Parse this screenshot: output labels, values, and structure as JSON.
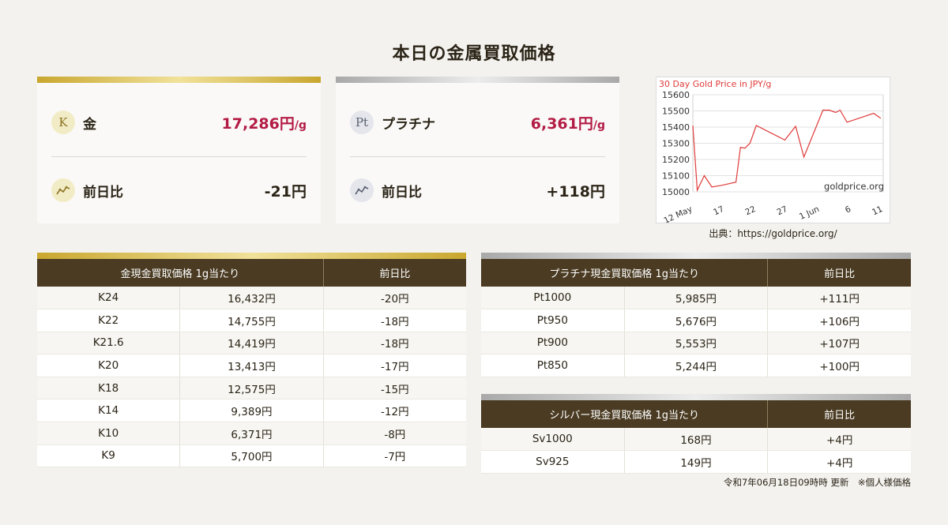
{
  "title": "本日の金属買取価格",
  "gold_card": {
    "badge": "K",
    "name": "金",
    "price": "17,286円",
    "unit": "/g",
    "change_label": "前日比",
    "change": "-21円",
    "change_icon": "trend-chart-icon"
  },
  "platinum_card": {
    "badge": "Pt",
    "name": "プラチナ",
    "price": "6,361円",
    "unit": "/g",
    "change_label": "前日比",
    "change": "+118円",
    "change_icon": "trend-chart-icon"
  },
  "chart_source": "出典：https://goldprice.org/",
  "chart_data": {
    "type": "line",
    "title": "30 Day Gold Price in JPY/g",
    "watermark": "goldprice.org",
    "x_tick_labels": [
      "12 May",
      "17",
      "22",
      "27",
      "1 Jun",
      "6",
      "11"
    ],
    "y_tick_labels": [
      "15000",
      "15100",
      "15200",
      "15300",
      "15400",
      "15500",
      "15600"
    ],
    "ylim": [
      15000,
      15600
    ],
    "xlim": [
      12,
      42
    ],
    "series": [
      {
        "x": [
          12,
          12.7,
          13.8,
          15,
          16.5,
          18.8,
          19.5,
          20.2,
          21,
          22,
          24.5,
          26.5,
          28.2,
          29.5,
          32.5,
          33.5,
          34.5,
          35.2,
          36.3,
          40.5,
          41.6
        ],
        "y": [
          15410,
          15010,
          15100,
          15030,
          15040,
          15060,
          15275,
          15270,
          15300,
          15410,
          15360,
          15320,
          15405,
          15215,
          15505,
          15505,
          15490,
          15505,
          15430,
          15485,
          15455
        ]
      }
    ],
    "color": "#e03a3a"
  },
  "gold_table": {
    "headers": [
      "金現金買取価格 1g当たり",
      "前日比"
    ],
    "rows": [
      [
        "K24",
        "16,432円",
        "-20円"
      ],
      [
        "K22",
        "14,755円",
        "-18円"
      ],
      [
        "K21.6",
        "14,419円",
        "-18円"
      ],
      [
        "K20",
        "13,413円",
        "-17円"
      ],
      [
        "K18",
        "12,575円",
        "-15円"
      ],
      [
        "K14",
        "9,389円",
        "-12円"
      ],
      [
        "K10",
        "6,371円",
        "-8円"
      ],
      [
        "K9",
        "5,700円",
        "-7円"
      ]
    ]
  },
  "platinum_table": {
    "headers": [
      "プラチナ現金買取価格 1g当たり",
      "前日比"
    ],
    "rows": [
      [
        "Pt1000",
        "5,985円",
        "+111円"
      ],
      [
        "Pt950",
        "5,676円",
        "+106円"
      ],
      [
        "Pt900",
        "5,553円",
        "+107円"
      ],
      [
        "Pt850",
        "5,244円",
        "+100円"
      ]
    ]
  },
  "silver_table": {
    "headers": [
      "シルバー現金買取価格 1g当たり",
      "前日比"
    ],
    "rows": [
      [
        "Sv1000",
        "168円",
        "+4円"
      ],
      [
        "Sv925",
        "149円",
        "+4円"
      ]
    ]
  },
  "updated_note": "令和7年06月18日09時時 更新　※個人様価格",
  "colors": {
    "gold_accent": "#c9a72f",
    "price_red": "#b31b45",
    "header_brown": "#4a3b22"
  }
}
